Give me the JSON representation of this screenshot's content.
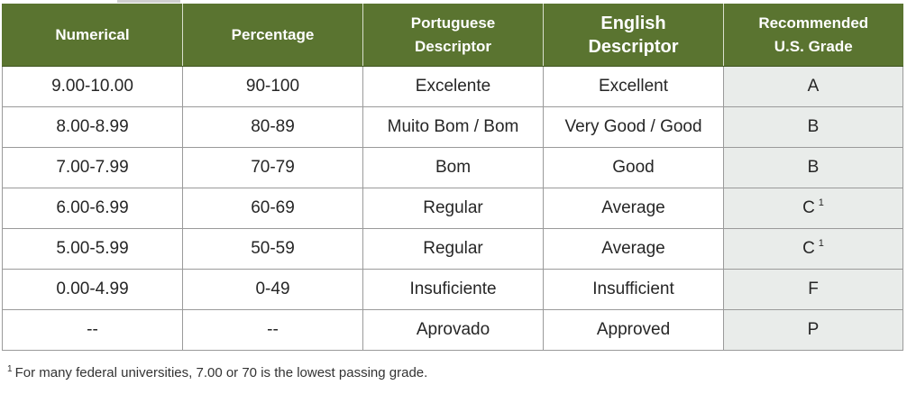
{
  "table": {
    "headers": [
      {
        "line1": "Numerical",
        "line2": ""
      },
      {
        "line1": "Percentage",
        "line2": ""
      },
      {
        "line1": "Portuguese",
        "line2": "Descriptor"
      },
      {
        "line1": "English",
        "line2": "Descriptor"
      },
      {
        "line1": "Recommended",
        "line2": "U.S. Grade"
      }
    ],
    "rows": [
      {
        "numerical": "9.00-10.00",
        "percentage": "90-100",
        "portuguese": "Excelente",
        "english": "Excellent",
        "grade": "A",
        "note": ""
      },
      {
        "numerical": "8.00-8.99",
        "percentage": "80-89",
        "portuguese": "Muito Bom / Bom",
        "english": "Very Good / Good",
        "grade": "B",
        "note": ""
      },
      {
        "numerical": "7.00-7.99",
        "percentage": "70-79",
        "portuguese": "Bom",
        "english": "Good",
        "grade": "B",
        "note": ""
      },
      {
        "numerical": "6.00-6.99",
        "percentage": "60-69",
        "portuguese": "Regular",
        "english": "Average",
        "grade": "C",
        "note": "1"
      },
      {
        "numerical": "5.00-5.99",
        "percentage": "50-59",
        "portuguese": "Regular",
        "english": "Average",
        "grade": "C",
        "note": "1"
      },
      {
        "numerical": "0.00-4.99",
        "percentage": "0-49",
        "portuguese": "Insuficiente",
        "english": "Insufficient",
        "grade": "F",
        "note": ""
      },
      {
        "numerical": "--",
        "percentage": "--",
        "portuguese": "Aprovado",
        "english": "Approved",
        "grade": "P",
        "note": ""
      }
    ]
  },
  "footnote": {
    "marker": "1",
    "text": "For many federal universities, 7.00 or 70 is the lowest passing grade."
  },
  "colors": {
    "header_bg": "#5a7430",
    "header_text": "#ffffff",
    "grade_column_bg": "#e9ecea",
    "border": "#9a9a9a"
  }
}
